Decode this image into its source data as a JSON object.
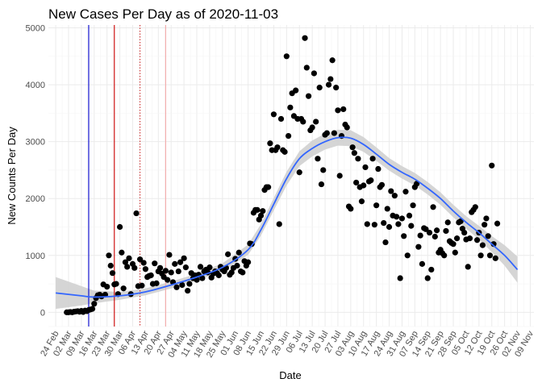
{
  "chart_data": {
    "type": "scatter",
    "title": "New Cases Per Day as of 2020-11-03",
    "xlabel": "Date",
    "ylabel": "New Counts Per Day",
    "xlim": [
      "2020-02-20",
      "2020-11-11"
    ],
    "ylim": [
      -250,
      5050
    ],
    "x_ticks": [
      "2020-02-24",
      "2020-03-02",
      "2020-03-09",
      "2020-03-16",
      "2020-03-23",
      "2020-03-30",
      "2020-04-06",
      "2020-04-13",
      "2020-04-20",
      "2020-04-27",
      "2020-05-04",
      "2020-05-11",
      "2020-05-18",
      "2020-05-25",
      "2020-06-01",
      "2020-06-08",
      "2020-06-15",
      "2020-06-22",
      "2020-06-29",
      "2020-07-06",
      "2020-07-13",
      "2020-07-20",
      "2020-07-27",
      "2020-08-03",
      "2020-08-10",
      "2020-08-17",
      "2020-08-24",
      "2020-08-31",
      "2020-09-07",
      "2020-09-14",
      "2020-09-21",
      "2020-09-28",
      "2020-10-05",
      "2020-10-12",
      "2020-10-19",
      "2020-10-26",
      "2020-11-02",
      "2020-11-09"
    ],
    "x_tick_labels": [
      "24 Feb",
      "02 Mar",
      "09 Mar",
      "16 Mar",
      "23 Mar",
      "30 Mar",
      "06 Apr",
      "13 Apr",
      "20 Apr",
      "27 Apr",
      "04 May",
      "11 May",
      "18 May",
      "25 May",
      "01 Jun",
      "08 Jun",
      "15 Jun",
      "22 Jun",
      "29 Jun",
      "06 Jul",
      "13 Jul",
      "20 Jul",
      "27 Jul",
      "03 Aug",
      "10 Aug",
      "17 Aug",
      "24 Aug",
      "31 Aug",
      "07 Sep",
      "14 Sep",
      "21 Sep",
      "28 Sep",
      "05 Oct",
      "12 Oct",
      "19 Oct",
      "26 Oct",
      "02 Nov",
      "09 Nov"
    ],
    "y_ticks": [
      0,
      1000,
      2000,
      3000,
      4000,
      5000
    ],
    "y_tick_labels": [
      "0",
      "1000",
      "2000",
      "3000",
      "4000",
      "5000"
    ],
    "grid": true,
    "vlines": [
      {
        "date": "2020-03-13",
        "color": "#0000cc",
        "style": "solid"
      },
      {
        "date": "2020-03-27",
        "color": "#cc0000",
        "style": "solid"
      },
      {
        "date": "2020-04-10",
        "color": "#cc3333",
        "style": "dotted"
      },
      {
        "date": "2020-04-24",
        "color": "#f4a8a8",
        "style": "solid"
      }
    ],
    "points_start": "2020-03-01",
    "points": [
      0,
      0,
      5,
      0,
      10,
      15,
      20,
      10,
      25,
      5,
      30,
      20,
      40,
      50,
      60,
      150,
      250,
      300,
      310,
      280,
      490,
      310,
      450,
      1000,
      820,
      690,
      490,
      500,
      320,
      1500,
      1050,
      420,
      880,
      800,
      950,
      320,
      850,
      780,
      1740,
      460,
      930,
      470,
      870,
      760,
      620,
      640,
      650,
      500,
      860,
      510,
      720,
      780,
      680,
      620,
      730,
      570,
      1010,
      700,
      530,
      850,
      440,
      720,
      880,
      480,
      950,
      790,
      380,
      500,
      690,
      600,
      650,
      570,
      660,
      800,
      600,
      720,
      750,
      700,
      790,
      610,
      680,
      720,
      690,
      650,
      800,
      750,
      720,
      780,
      1020,
      660,
      700,
      780,
      940,
      820,
      1050,
      720,
      700,
      900,
      820,
      880,
      1210,
      1200,
      1750,
      1800,
      1800,
      1630,
      1700,
      1780,
      2150,
      2200,
      2200,
      2970,
      2850,
      3480,
      2850,
      2900,
      1550,
      3400,
      2850,
      2820,
      4500,
      3100,
      3600,
      3850,
      3450,
      3900,
      3400,
      2460,
      3400,
      3350,
      4820,
      4300,
      3800,
      3200,
      3250,
      4200,
      3350,
      2700,
      3950,
      2250,
      2500,
      3120,
      3150,
      4000,
      4100,
      4430,
      3150,
      3950,
      3550,
      2400,
      3100,
      3570,
      3300,
      3250,
      1860,
      1820,
      2900,
      2800,
      2280,
      2700,
      2200,
      1950,
      2230,
      2550,
      1550,
      2300,
      2320,
      2700,
      1540,
      1880,
      2520,
      2200,
      2240,
      1570,
      1230,
      1820,
      1500,
      2130,
      1700,
      2050,
      1680,
      1550,
      600,
      1650,
      1340,
      2120,
      1000,
      1700,
      1520,
      1880,
      2200,
      2260,
      1150,
      1350,
      850,
      1480,
      1460,
      600,
      1400,
      750,
      1850,
      1330,
      1440,
      1050,
      1100,
      1040,
      1000,
      1430,
      1580,
      1250,
      1220,
      1200,
      1050,
      1300,
      1580,
      1600,
      1470,
      1400,
      1280,
      800,
      1300,
      1760,
      1800,
      1850,
      1270,
      1400,
      1000,
      1180,
      1540,
      1650,
      1340,
      1000,
      2580,
      1200,
      950,
      1560
    ],
    "trend": [
      {
        "date": "2020-02-24",
        "value": 340
      },
      {
        "date": "2020-03-09",
        "value": 290
      },
      {
        "date": "2020-03-16",
        "value": 268
      },
      {
        "date": "2020-03-30",
        "value": 290
      },
      {
        "date": "2020-04-13",
        "value": 360
      },
      {
        "date": "2020-04-27",
        "value": 480
      },
      {
        "date": "2020-05-11",
        "value": 620
      },
      {
        "date": "2020-05-25",
        "value": 790
      },
      {
        "date": "2020-06-08",
        "value": 1100
      },
      {
        "date": "2020-06-15",
        "value": 1450
      },
      {
        "date": "2020-06-22",
        "value": 1900
      },
      {
        "date": "2020-06-29",
        "value": 2350
      },
      {
        "date": "2020-07-06",
        "value": 2700
      },
      {
        "date": "2020-07-13",
        "value": 2880
      },
      {
        "date": "2020-07-20",
        "value": 3000
      },
      {
        "date": "2020-07-27",
        "value": 3070
      },
      {
        "date": "2020-08-03",
        "value": 3060
      },
      {
        "date": "2020-08-10",
        "value": 2950
      },
      {
        "date": "2020-08-17",
        "value": 2780
      },
      {
        "date": "2020-08-24",
        "value": 2600
      },
      {
        "date": "2020-08-31",
        "value": 2460
      },
      {
        "date": "2020-09-07",
        "value": 2340
      },
      {
        "date": "2020-09-14",
        "value": 2180
      },
      {
        "date": "2020-09-21",
        "value": 2000
      },
      {
        "date": "2020-09-28",
        "value": 1780
      },
      {
        "date": "2020-10-05",
        "value": 1580
      },
      {
        "date": "2020-10-12",
        "value": 1400
      },
      {
        "date": "2020-10-19",
        "value": 1200
      },
      {
        "date": "2020-10-26",
        "value": 1000
      },
      {
        "date": "2020-11-02",
        "value": 750
      }
    ],
    "band": [
      {
        "date": "2020-02-24",
        "lo": 60,
        "hi": 620
      },
      {
        "date": "2020-03-09",
        "lo": 120,
        "hi": 460
      },
      {
        "date": "2020-03-16",
        "lo": 160,
        "hi": 380
      },
      {
        "date": "2020-03-30",
        "lo": 220,
        "hi": 360
      },
      {
        "date": "2020-04-13",
        "lo": 300,
        "hi": 420
      },
      {
        "date": "2020-04-27",
        "lo": 420,
        "hi": 540
      },
      {
        "date": "2020-05-11",
        "lo": 560,
        "hi": 680
      },
      {
        "date": "2020-05-25",
        "lo": 720,
        "hi": 860
      },
      {
        "date": "2020-06-08",
        "lo": 1010,
        "hi": 1190
      },
      {
        "date": "2020-06-15",
        "lo": 1350,
        "hi": 1550
      },
      {
        "date": "2020-06-22",
        "lo": 1790,
        "hi": 2010
      },
      {
        "date": "2020-06-29",
        "lo": 2230,
        "hi": 2470
      },
      {
        "date": "2020-07-06",
        "lo": 2570,
        "hi": 2830
      },
      {
        "date": "2020-07-13",
        "lo": 2740,
        "hi": 3020
      },
      {
        "date": "2020-07-20",
        "lo": 2860,
        "hi": 3140
      },
      {
        "date": "2020-07-27",
        "lo": 2930,
        "hi": 3210
      },
      {
        "date": "2020-08-03",
        "lo": 2920,
        "hi": 3200
      },
      {
        "date": "2020-08-10",
        "lo": 2820,
        "hi": 3080
      },
      {
        "date": "2020-08-17",
        "lo": 2660,
        "hi": 2900
      },
      {
        "date": "2020-08-24",
        "lo": 2490,
        "hi": 2710
      },
      {
        "date": "2020-08-31",
        "lo": 2350,
        "hi": 2570
      },
      {
        "date": "2020-09-07",
        "lo": 2230,
        "hi": 2450
      },
      {
        "date": "2020-09-14",
        "lo": 2070,
        "hi": 2290
      },
      {
        "date": "2020-09-21",
        "lo": 1890,
        "hi": 2110
      },
      {
        "date": "2020-09-28",
        "lo": 1670,
        "hi": 1890
      },
      {
        "date": "2020-10-05",
        "lo": 1470,
        "hi": 1690
      },
      {
        "date": "2020-10-12",
        "lo": 1280,
        "hi": 1520
      },
      {
        "date": "2020-10-19",
        "lo": 1060,
        "hi": 1340
      },
      {
        "date": "2020-10-26",
        "lo": 820,
        "hi": 1180
      },
      {
        "date": "2020-11-02",
        "lo": 520,
        "hi": 980
      }
    ],
    "colors": {
      "points": "#000000",
      "trend": "#3366ff",
      "band": "#d0d0d0",
      "grid": "#ebebeb"
    }
  }
}
